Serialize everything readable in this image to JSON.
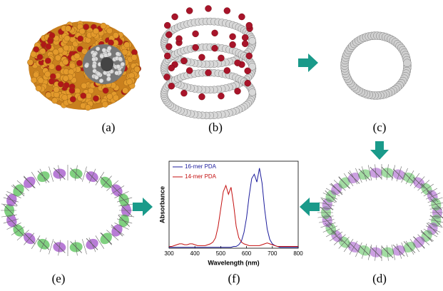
{
  "panel_labels": [
    "(a)",
    "(b)",
    "(c)",
    "(d)",
    "(e)",
    "(f)"
  ],
  "chart_data": {
    "type": "line",
    "xlabel": "Wavelength (nm)",
    "ylabel": "Absorbance",
    "xlim": [
      300,
      800
    ],
    "xticks": [
      300,
      400,
      500,
      600,
      700,
      800
    ],
    "ylim": [
      0,
      1
    ],
    "x": [
      300,
      310,
      320,
      330,
      340,
      350,
      360,
      370,
      380,
      390,
      400,
      410,
      420,
      430,
      440,
      450,
      460,
      470,
      480,
      490,
      500,
      510,
      520,
      530,
      540,
      550,
      560,
      570,
      580,
      590,
      600,
      610,
      620,
      630,
      640,
      650,
      660,
      670,
      680,
      690,
      700,
      710,
      720,
      730,
      740,
      750,
      760,
      770,
      780,
      790,
      800
    ],
    "series": [
      {
        "name": "16-mer PDA",
        "color": "#1c1c9c",
        "values": [
          0.01,
          0.01,
          0.01,
          0.01,
          0.01,
          0.01,
          0.01,
          0.01,
          0.01,
          0.01,
          0.01,
          0.01,
          0.01,
          0.01,
          0.01,
          0.01,
          0.01,
          0.01,
          0.01,
          0.01,
          0.01,
          0.01,
          0.01,
          0.01,
          0.01,
          0.02,
          0.02,
          0.04,
          0.08,
          0.18,
          0.35,
          0.6,
          0.8,
          0.85,
          0.76,
          0.92,
          0.75,
          0.45,
          0.22,
          0.1,
          0.05,
          0.03,
          0.02,
          0.01,
          0.01,
          0.01,
          0.01,
          0.01,
          0.01,
          0.01,
          0.01
        ]
      },
      {
        "name": "14-mer PDA",
        "color": "#c41010",
        "values": [
          0.02,
          0.02,
          0.03,
          0.04,
          0.05,
          0.05,
          0.04,
          0.04,
          0.05,
          0.05,
          0.04,
          0.03,
          0.03,
          0.03,
          0.03,
          0.04,
          0.05,
          0.07,
          0.12,
          0.25,
          0.45,
          0.65,
          0.72,
          0.62,
          0.7,
          0.5,
          0.25,
          0.12,
          0.07,
          0.05,
          0.04,
          0.03,
          0.03,
          0.03,
          0.03,
          0.03,
          0.04,
          0.05,
          0.06,
          0.05,
          0.04,
          0.03,
          0.02,
          0.02,
          0.02,
          0.02,
          0.02,
          0.02,
          0.02,
          0.02,
          0.02
        ]
      }
    ]
  }
}
